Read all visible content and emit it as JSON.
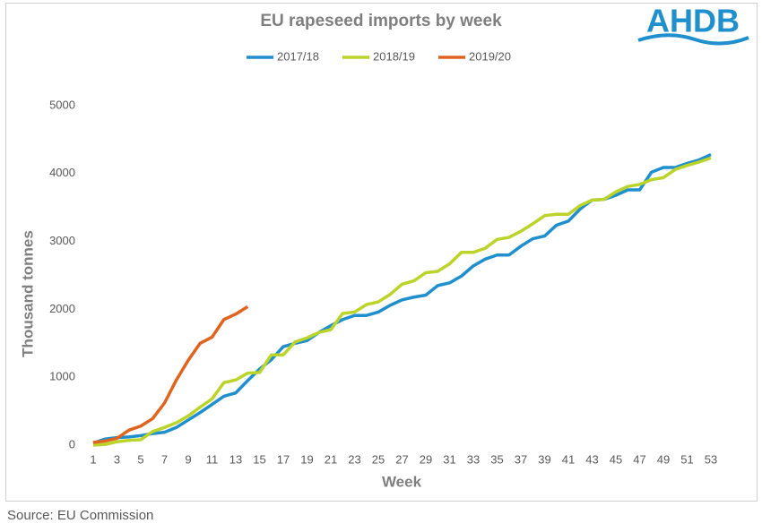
{
  "chart_data": {
    "type": "line",
    "title": "EU rapeseed imports by week",
    "logo": "AHDB",
    "source": "Source: EU Commission",
    "x_label": "Week",
    "y_label": "Thousand tonnes",
    "x": [
      1,
      2,
      3,
      4,
      5,
      6,
      7,
      8,
      9,
      10,
      11,
      12,
      13,
      14,
      15,
      16,
      17,
      18,
      19,
      20,
      21,
      22,
      23,
      24,
      25,
      26,
      27,
      28,
      29,
      30,
      31,
      32,
      33,
      34,
      35,
      36,
      37,
      38,
      39,
      40,
      41,
      42,
      43,
      44,
      45,
      46,
      47,
      48,
      49,
      50,
      51,
      52,
      53
    ],
    "series": [
      {
        "name": "2017/18",
        "color": "#1f8fce",
        "values": [
          30,
          90,
          110,
          120,
          140,
          170,
          190,
          260,
          370,
          480,
          600,
          720,
          770,
          950,
          1120,
          1260,
          1450,
          1500,
          1540,
          1660,
          1760,
          1850,
          1910,
          1910,
          1960,
          2060,
          2140,
          2180,
          2210,
          2350,
          2390,
          2490,
          2640,
          2740,
          2800,
          2800,
          2930,
          3040,
          3080,
          3240,
          3300,
          3480,
          3610,
          3620,
          3680,
          3760,
          3760,
          4020,
          4090,
          4090,
          4150,
          4200,
          4280
        ]
      },
      {
        "name": "2018/19",
        "color": "#bcd42a",
        "values": [
          0,
          10,
          50,
          70,
          80,
          200,
          260,
          330,
          430,
          560,
          680,
          920,
          960,
          1060,
          1070,
          1330,
          1330,
          1520,
          1580,
          1660,
          1700,
          1940,
          1960,
          2070,
          2110,
          2220,
          2370,
          2420,
          2540,
          2560,
          2670,
          2840,
          2840,
          2900,
          3030,
          3060,
          3150,
          3260,
          3380,
          3400,
          3400,
          3530,
          3610,
          3620,
          3730,
          3810,
          3840,
          3910,
          3940,
          4060,
          4120,
          4170,
          4230
        ]
      },
      {
        "name": "2019/20",
        "color": "#e0641e",
        "values": [
          40,
          60,
          100,
          220,
          280,
          390,
          620,
          960,
          1250,
          1500,
          1590,
          1850,
          1930,
          2040,
          null,
          null,
          null,
          null,
          null,
          null,
          null,
          null,
          null,
          null,
          null,
          null,
          null,
          null,
          null,
          null,
          null,
          null,
          null,
          null,
          null,
          null,
          null,
          null,
          null,
          null,
          null,
          null,
          null,
          null,
          null,
          null,
          null,
          null,
          null,
          null,
          null,
          null,
          null
        ]
      }
    ],
    "xlim": [
      1,
      53
    ],
    "xticks": [
      1,
      3,
      5,
      7,
      9,
      11,
      13,
      15,
      17,
      19,
      21,
      23,
      25,
      27,
      29,
      31,
      33,
      35,
      37,
      39,
      41,
      43,
      45,
      47,
      49,
      51,
      53
    ],
    "ylim": [
      0,
      5000
    ],
    "yticks": [
      0,
      1000,
      2000,
      3000,
      4000,
      5000
    ],
    "grid": false,
    "legend": "top"
  }
}
